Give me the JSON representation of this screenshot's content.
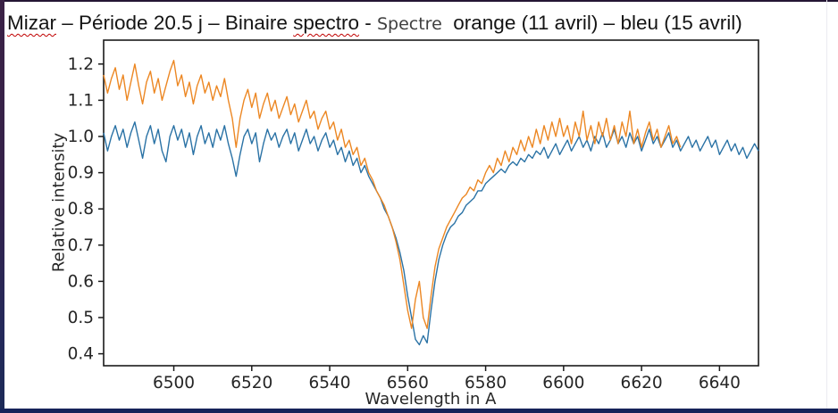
{
  "slide": {
    "title_parts": {
      "word_mizar": "Mizar",
      "mid1": " – Période 20.5 j – Binaire ",
      "word_spectro": "spectro",
      "sep": " - ",
      "overlay_word": "Spectre",
      "tail": "  orange (11 avril) – bleu (15 avril)"
    }
  },
  "chart_data": {
    "type": "line",
    "title": "Mizar – Période 20.5 j – Binaire spectro - Spectre orange (11 avril) – bleu (15 avril)",
    "xlabel": "Wavelength in A",
    "ylabel": "Relative intensity",
    "xlim": [
      6482,
      6650
    ],
    "ylim": [
      0.367,
      1.266
    ],
    "x_ticks": [
      6500,
      6520,
      6540,
      6560,
      6580,
      6600,
      6620,
      6640
    ],
    "y_ticks": [
      0.4,
      0.5,
      0.6,
      0.7,
      0.8,
      0.9,
      1.0,
      1.1,
      1.2
    ],
    "grid": false,
    "legend_position": "none",
    "axis_color": "#1a1a1a",
    "absorption_line_center_A": 6563,
    "series": [
      {
        "name": "Spectre bleu (15 avril)",
        "color": "#2a72a5",
        "x_start": 6482,
        "x_step": 1,
        "values": [
          1.01,
          0.96,
          1.0,
          1.03,
          0.99,
          1.02,
          0.97,
          1.01,
          1.04,
          0.99,
          0.94,
          1.0,
          1.03,
          0.98,
          1.02,
          0.96,
          0.93,
          1.0,
          1.03,
          0.99,
          1.02,
          0.97,
          1.01,
          0.95,
          1.0,
          1.03,
          0.98,
          1.01,
          0.97,
          1.02,
          0.99,
          1.03,
          0.98,
          0.94,
          0.89,
          0.95,
          1.0,
          1.02,
          0.98,
          1.01,
          0.93,
          0.98,
          1.02,
          0.99,
          1.01,
          0.97,
          1.0,
          1.02,
          0.98,
          1.01,
          0.96,
          0.99,
          1.02,
          0.98,
          1.0,
          0.96,
          0.99,
          1.01,
          0.97,
          0.99,
          0.95,
          0.97,
          0.93,
          0.96,
          0.92,
          0.94,
          0.9,
          0.92,
          0.89,
          0.87,
          0.85,
          0.83,
          0.8,
          0.78,
          0.75,
          0.72,
          0.68,
          0.63,
          0.56,
          0.5,
          0.44,
          0.425,
          0.45,
          0.43,
          0.52,
          0.6,
          0.66,
          0.7,
          0.73,
          0.75,
          0.76,
          0.78,
          0.79,
          0.81,
          0.82,
          0.83,
          0.85,
          0.85,
          0.87,
          0.88,
          0.89,
          0.9,
          0.91,
          0.9,
          0.92,
          0.93,
          0.92,
          0.94,
          0.93,
          0.95,
          0.94,
          0.96,
          0.95,
          0.97,
          0.94,
          0.96,
          0.98,
          0.95,
          0.97,
          0.99,
          0.96,
          0.98,
          1.0,
          0.97,
          0.99,
          0.96,
          1.0,
          0.98,
          1.01,
          0.97,
          0.99,
          1.02,
          0.98,
          1.0,
          0.97,
          1.01,
          0.98,
          1.0,
          0.96,
          0.99,
          1.02,
          0.98,
          1.0,
          0.97,
          0.99,
          1.01,
          0.97,
          0.99,
          0.96,
          0.98,
          1.0,
          0.97,
          0.99,
          0.96,
          0.98,
          1.0,
          0.97,
          0.99,
          0.95,
          0.97,
          0.99,
          0.96,
          0.98,
          0.95,
          0.97,
          0.94,
          0.96,
          0.98,
          0.96
        ]
      },
      {
        "name": "Spectre orange (11 avril)",
        "color": "#ec8723",
        "x_start": 6482,
        "x_step": 1,
        "values": [
          1.17,
          1.12,
          1.16,
          1.19,
          1.13,
          1.17,
          1.1,
          1.15,
          1.2,
          1.14,
          1.09,
          1.15,
          1.18,
          1.12,
          1.16,
          1.1,
          1.14,
          1.18,
          1.21,
          1.14,
          1.17,
          1.11,
          1.15,
          1.09,
          1.14,
          1.17,
          1.12,
          1.15,
          1.1,
          1.14,
          1.11,
          1.16,
          1.1,
          1.05,
          0.97,
          1.05,
          1.1,
          1.13,
          1.08,
          1.12,
          1.05,
          1.09,
          1.12,
          1.07,
          1.1,
          1.05,
          1.08,
          1.11,
          1.06,
          1.09,
          1.04,
          1.07,
          1.1,
          1.05,
          1.07,
          1.02,
          1.05,
          1.07,
          1.02,
          1.04,
          0.99,
          1.02,
          0.97,
          0.99,
          0.95,
          0.97,
          0.92,
          0.94,
          0.9,
          0.88,
          0.85,
          0.83,
          0.81,
          0.78,
          0.75,
          0.71,
          0.66,
          0.59,
          0.52,
          0.47,
          0.55,
          0.6,
          0.5,
          0.47,
          0.56,
          0.64,
          0.69,
          0.72,
          0.75,
          0.77,
          0.79,
          0.81,
          0.83,
          0.84,
          0.86,
          0.85,
          0.88,
          0.87,
          0.9,
          0.92,
          0.9,
          0.94,
          0.92,
          0.96,
          0.93,
          0.97,
          0.95,
          0.99,
          0.96,
          1.0,
          0.97,
          1.02,
          0.98,
          1.03,
          0.99,
          1.04,
          1.0,
          1.05,
          1.0,
          1.03,
          0.98,
          1.04,
          1.0,
          1.07,
          0.99,
          1.03,
          0.98,
          1.04,
          1.0,
          1.05,
          0.99,
          1.03,
          0.98,
          1.04,
          1.0,
          1.07,
          0.98,
          1.02,
          0.97,
          1.01,
          1.04,
          0.99,
          1.02,
          0.97,
          1.0,
          1.03,
          0.98,
          1.0,
          0.97
        ]
      }
    ]
  }
}
